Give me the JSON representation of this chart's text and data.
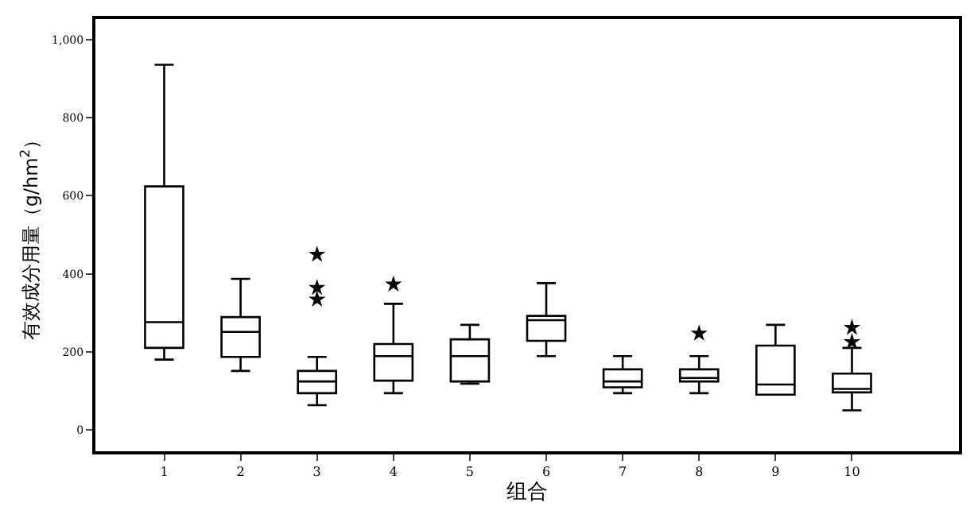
{
  "chart_data": {
    "type": "box",
    "xlabel": "组合",
    "ylabel": "有效成分用量（g/hm$^{2}$）",
    "categories": [
      "1",
      "2",
      "3",
      "4",
      "5",
      "6",
      "7",
      "8",
      "9",
      "10"
    ],
    "boxes": [
      {
        "low": 180,
        "q1": 210,
        "median": 276,
        "q3": 624,
        "high": 936
      },
      {
        "low": 151,
        "q1": 187,
        "median": 251,
        "q3": 289,
        "high": 387
      },
      {
        "low": 63,
        "q1": 94,
        "median": 124,
        "q3": 151,
        "high": 187,
        "outliers": [
          449,
          364,
          334
        ]
      },
      {
        "low": 94,
        "q1": 126,
        "median": 189,
        "q3": 220,
        "high": 323,
        "outliers": [
          373
        ]
      },
      {
        "low": 118,
        "q1": 124,
        "median": 189,
        "q3": 232,
        "high": 269
      },
      {
        "low": 189,
        "q1": 228,
        "median": 281,
        "q3": 292,
        "high": 376
      },
      {
        "low": 94,
        "q1": 109,
        "median": 124,
        "q3": 155,
        "high": 189
      },
      {
        "low": 94,
        "q1": 124,
        "median": 133,
        "q3": 155,
        "high": 189,
        "outliers": [
          247
        ]
      },
      {
        "low": 90,
        "q1": 90,
        "median": 116,
        "q3": 216,
        "high": 269
      },
      {
        "low": 50,
        "q1": 96,
        "median": 105,
        "q3": 144,
        "high": 210,
        "outliers": [
          262,
          225
        ]
      }
    ],
    "color": "#000000",
    "ylim": [
      -55,
      1053
    ],
    "yticks": [
      0,
      200,
      400,
      600,
      800,
      {
        "value": 1000,
        "label": "1,000"
      }
    ],
    "grid": false,
    "marker": "star"
  }
}
